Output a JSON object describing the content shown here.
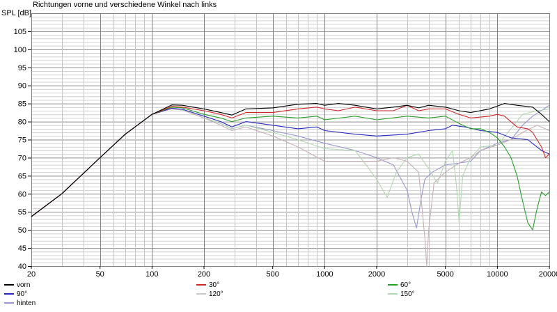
{
  "chart_data": {
    "type": "line",
    "title": "Richtungen vorne und verschiedene Winkel nach links",
    "ylabel": "SPL [dB]",
    "xlabel": "",
    "xscale": "log",
    "xlim": [
      20,
      20000
    ],
    "ylim": [
      40,
      110
    ],
    "grid": true,
    "x_ticks": [
      20,
      50,
      100,
      200,
      500,
      1000,
      2000,
      5000,
      10000,
      20000
    ],
    "x_tick_labels": [
      "20",
      "50",
      "100",
      "200",
      "500",
      "1000",
      "2000",
      "5000",
      "10000",
      "20000"
    ],
    "y_ticks": [
      40,
      45,
      50,
      55,
      60,
      65,
      70,
      75,
      80,
      85,
      90,
      95,
      100,
      105
    ],
    "y_tick_labels": [
      "40",
      "45",
      "50",
      "55",
      "60",
      "65",
      "70",
      "75",
      "80",
      "85",
      "90",
      "95",
      "100",
      "105"
    ],
    "legend_placement": "bottom",
    "series": [
      {
        "name": "vorn",
        "color": "#000000",
        "points": [
          [
            20,
            53.7
          ],
          [
            30,
            60
          ],
          [
            50,
            70
          ],
          [
            70,
            76.5
          ],
          [
            100,
            82
          ],
          [
            130,
            84.6
          ],
          [
            150,
            84.5
          ],
          [
            200,
            83.5
          ],
          [
            250,
            82.5
          ],
          [
            290,
            81.8
          ],
          [
            350,
            83.5
          ],
          [
            500,
            83.8
          ],
          [
            700,
            84.8
          ],
          [
            900,
            85
          ],
          [
            1000,
            84.5
          ],
          [
            1200,
            85
          ],
          [
            1500,
            84.5
          ],
          [
            2000,
            83.5
          ],
          [
            2500,
            84
          ],
          [
            3000,
            84.5
          ],
          [
            3500,
            83.8
          ],
          [
            4000,
            84.5
          ],
          [
            5000,
            84
          ],
          [
            6000,
            83
          ],
          [
            7000,
            82.5
          ],
          [
            9000,
            83.5
          ],
          [
            11000,
            85
          ],
          [
            13000,
            84.5
          ],
          [
            16000,
            84
          ],
          [
            18000,
            82
          ],
          [
            20000,
            80
          ]
        ]
      },
      {
        "name": "30°",
        "color": "#d02828",
        "points": [
          [
            20,
            53.7
          ],
          [
            30,
            60
          ],
          [
            50,
            70
          ],
          [
            70,
            76.5
          ],
          [
            100,
            82
          ],
          [
            130,
            84.2
          ],
          [
            150,
            84
          ],
          [
            200,
            83
          ],
          [
            250,
            82
          ],
          [
            290,
            81
          ],
          [
            350,
            82.5
          ],
          [
            500,
            82.5
          ],
          [
            700,
            83.5
          ],
          [
            900,
            84
          ],
          [
            1000,
            83.5
          ],
          [
            1200,
            83
          ],
          [
            1500,
            84
          ],
          [
            2000,
            83
          ],
          [
            2500,
            83
          ],
          [
            3000,
            84.5
          ],
          [
            3500,
            83
          ],
          [
            4000,
            83.5
          ],
          [
            5000,
            83.5
          ],
          [
            6000,
            82
          ],
          [
            7000,
            81
          ],
          [
            9000,
            81.5
          ],
          [
            10000,
            82
          ],
          [
            11000,
            81.5
          ],
          [
            13000,
            78.5
          ],
          [
            15000,
            78
          ],
          [
            16000,
            77
          ],
          [
            18000,
            73
          ],
          [
            19000,
            70
          ],
          [
            20000,
            71
          ]
        ]
      },
      {
        "name": "60°",
        "color": "#28a028",
        "points": [
          [
            20,
            53.7
          ],
          [
            30,
            60
          ],
          [
            50,
            70
          ],
          [
            70,
            76.5
          ],
          [
            100,
            82
          ],
          [
            130,
            84
          ],
          [
            150,
            83.8
          ],
          [
            200,
            82
          ],
          [
            250,
            81
          ],
          [
            290,
            80
          ],
          [
            350,
            81
          ],
          [
            500,
            81.5
          ],
          [
            700,
            81
          ],
          [
            900,
            81.5
          ],
          [
            1000,
            80.5
          ],
          [
            1500,
            81.5
          ],
          [
            2000,
            80.5
          ],
          [
            3000,
            81.5
          ],
          [
            4000,
            81
          ],
          [
            5000,
            81.5
          ],
          [
            6000,
            79.5
          ],
          [
            7000,
            78
          ],
          [
            8000,
            78
          ],
          [
            9000,
            77
          ],
          [
            10000,
            75.5
          ],
          [
            11000,
            73
          ],
          [
            12000,
            70
          ],
          [
            13000,
            65
          ],
          [
            14000,
            58
          ],
          [
            15000,
            52
          ],
          [
            16000,
            50
          ],
          [
            17000,
            56
          ],
          [
            18000,
            60.5
          ],
          [
            19000,
            59.5
          ],
          [
            20000,
            60.5
          ]
        ]
      },
      {
        "name": "90°",
        "color": "#2828c0",
        "points": [
          [
            20,
            53.7
          ],
          [
            30,
            60
          ],
          [
            50,
            70
          ],
          [
            70,
            76.5
          ],
          [
            100,
            82
          ],
          [
            130,
            83.7
          ],
          [
            150,
            83.4
          ],
          [
            200,
            81.5
          ],
          [
            250,
            80
          ],
          [
            290,
            78.5
          ],
          [
            350,
            80
          ],
          [
            500,
            79
          ],
          [
            700,
            78
          ],
          [
            900,
            78.5
          ],
          [
            1000,
            77.5
          ],
          [
            1500,
            76.5
          ],
          [
            2000,
            76
          ],
          [
            3000,
            76.5
          ],
          [
            4000,
            77.5
          ],
          [
            5000,
            78
          ],
          [
            5500,
            79
          ],
          [
            6500,
            78.5
          ],
          [
            8000,
            77.5
          ],
          [
            10000,
            77
          ],
          [
            12000,
            75.5
          ],
          [
            15000,
            75
          ],
          [
            18000,
            72
          ],
          [
            20000,
            71
          ]
        ]
      },
      {
        "name": "120°",
        "color": "#c8b0b8",
        "points": [
          [
            20,
            53.7
          ],
          [
            30,
            60
          ],
          [
            50,
            70
          ],
          [
            70,
            76.5
          ],
          [
            100,
            82
          ],
          [
            130,
            83.5
          ],
          [
            150,
            83.2
          ],
          [
            200,
            81
          ],
          [
            250,
            79
          ],
          [
            290,
            77.5
          ],
          [
            350,
            78.5
          ],
          [
            500,
            76
          ],
          [
            700,
            73
          ],
          [
            1000,
            69
          ],
          [
            1500,
            69
          ],
          [
            2000,
            69
          ],
          [
            2500,
            70
          ],
          [
            3000,
            69
          ],
          [
            3500,
            66
          ],
          [
            3800,
            48
          ],
          [
            3900,
            40
          ],
          [
            4000,
            50
          ],
          [
            4300,
            63
          ],
          [
            5000,
            66
          ],
          [
            6000,
            68.5
          ],
          [
            7000,
            70
          ],
          [
            8000,
            72
          ],
          [
            10000,
            73.5
          ],
          [
            12000,
            75
          ],
          [
            14000,
            77
          ],
          [
            17000,
            79
          ],
          [
            20000,
            77.5
          ]
        ]
      },
      {
        "name": "150°",
        "color": "#b0d8b0",
        "points": [
          [
            20,
            53.7
          ],
          [
            30,
            60
          ],
          [
            50,
            70
          ],
          [
            70,
            76.5
          ],
          [
            100,
            82
          ],
          [
            130,
            83.5
          ],
          [
            150,
            83.2
          ],
          [
            200,
            81
          ],
          [
            250,
            79.5
          ],
          [
            290,
            78
          ],
          [
            350,
            79
          ],
          [
            500,
            77
          ],
          [
            700,
            75
          ],
          [
            1000,
            72.5
          ],
          [
            1500,
            72
          ],
          [
            1800,
            67
          ],
          [
            2000,
            64
          ],
          [
            2300,
            59
          ],
          [
            2600,
            66
          ],
          [
            3000,
            70
          ],
          [
            3500,
            71
          ],
          [
            4000,
            67
          ],
          [
            4500,
            63
          ],
          [
            5000,
            69
          ],
          [
            5500,
            72
          ],
          [
            5800,
            62
          ],
          [
            6000,
            52
          ],
          [
            6300,
            65
          ],
          [
            7000,
            70
          ],
          [
            8000,
            73
          ],
          [
            10000,
            73.5
          ],
          [
            12000,
            78
          ],
          [
            14000,
            82
          ],
          [
            17000,
            83
          ],
          [
            20000,
            83.5
          ]
        ]
      },
      {
        "name": "hinten",
        "color": "#9898d0",
        "points": [
          [
            20,
            53.7
          ],
          [
            30,
            60
          ],
          [
            50,
            70
          ],
          [
            70,
            76.5
          ],
          [
            100,
            82
          ],
          [
            130,
            83.5
          ],
          [
            150,
            83.2
          ],
          [
            200,
            81
          ],
          [
            250,
            79.5
          ],
          [
            290,
            78
          ],
          [
            350,
            79
          ],
          [
            500,
            77.5
          ],
          [
            700,
            76
          ],
          [
            1000,
            74
          ],
          [
            1500,
            72
          ],
          [
            2000,
            70
          ],
          [
            2500,
            68
          ],
          [
            3000,
            61
          ],
          [
            3200,
            55
          ],
          [
            3400,
            50.5
          ],
          [
            3600,
            58
          ],
          [
            3800,
            64
          ],
          [
            4200,
            66
          ],
          [
            5000,
            68
          ],
          [
            6000,
            68.5
          ],
          [
            7000,
            69
          ],
          [
            8000,
            72
          ],
          [
            10000,
            74
          ],
          [
            12000,
            75
          ],
          [
            14000,
            79
          ],
          [
            16000,
            81.5
          ],
          [
            20000,
            84.5
          ]
        ]
      }
    ]
  }
}
